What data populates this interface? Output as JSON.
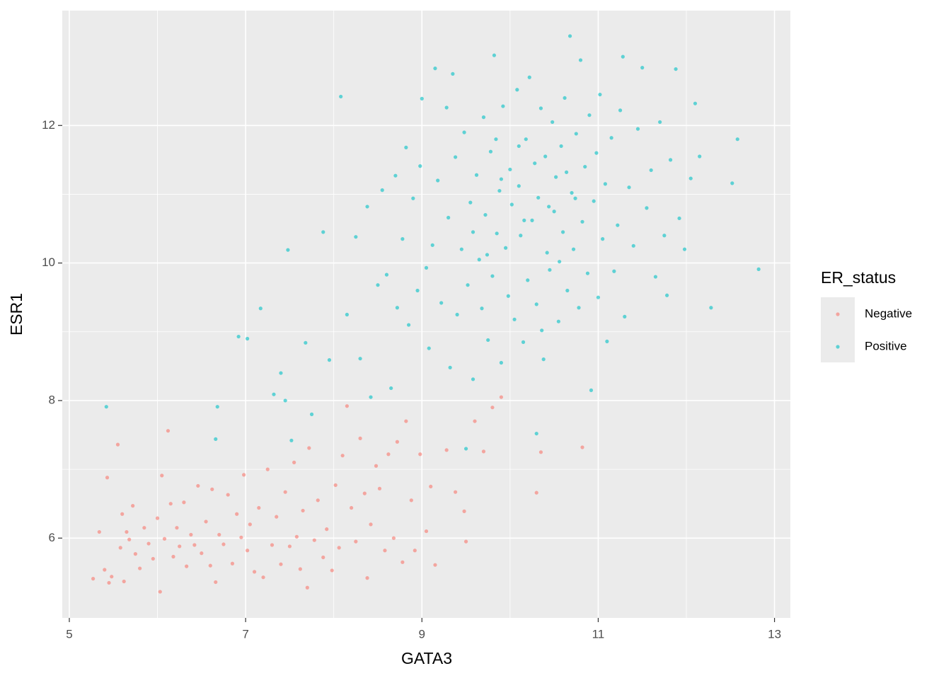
{
  "chart_data": {
    "type": "scatter",
    "x_label": "GATA3",
    "y_label": "ESR1",
    "legend_title": "ER_status",
    "legend_position": "right",
    "grid": true,
    "xlim": [
      4.92,
      13.18
    ],
    "ylim": [
      4.84,
      13.67
    ],
    "xticks": [
      5,
      7,
      9,
      11,
      13
    ],
    "yticks": [
      6,
      8,
      10,
      12
    ],
    "series": [
      {
        "name": "Negative",
        "color": "#F8766D",
        "x": [
          5.27,
          5.34,
          5.4,
          5.43,
          5.45,
          5.48,
          5.55,
          5.58,
          5.6,
          5.62,
          5.65,
          5.68,
          5.72,
          5.75,
          5.8,
          5.85,
          5.9,
          5.95,
          6.0,
          6.03,
          6.05,
          6.08,
          6.12,
          6.15,
          6.18,
          6.22,
          6.25,
          6.3,
          6.33,
          6.38,
          6.42,
          6.46,
          6.5,
          6.55,
          6.6,
          6.62,
          6.66,
          6.7,
          6.75,
          6.8,
          6.85,
          6.9,
          6.95,
          6.98,
          7.02,
          7.05,
          7.1,
          7.15,
          7.2,
          7.25,
          7.3,
          7.35,
          7.4,
          7.45,
          7.5,
          7.55,
          7.58,
          7.62,
          7.65,
          7.7,
          7.72,
          7.78,
          7.82,
          7.88,
          7.92,
          7.98,
          8.02,
          8.06,
          8.1,
          8.15,
          8.2,
          8.25,
          8.3,
          8.35,
          8.38,
          8.42,
          8.48,
          8.52,
          8.58,
          8.62,
          8.68,
          8.72,
          8.78,
          8.82,
          8.88,
          8.92,
          8.98,
          9.05,
          9.1,
          9.15,
          9.28,
          9.38,
          9.48,
          9.5,
          9.6,
          9.7,
          9.8,
          9.9,
          10.3,
          10.35,
          10.82
        ],
        "y": [
          5.41,
          6.09,
          5.54,
          6.88,
          5.35,
          5.44,
          7.36,
          5.86,
          6.35,
          5.37,
          6.09,
          5.98,
          6.47,
          5.77,
          5.56,
          6.15,
          5.92,
          5.7,
          6.29,
          5.22,
          6.91,
          5.99,
          7.56,
          6.5,
          5.73,
          6.15,
          5.88,
          6.52,
          5.59,
          6.05,
          5.9,
          6.76,
          5.78,
          6.24,
          5.6,
          6.71,
          5.36,
          6.05,
          5.91,
          6.63,
          5.63,
          6.35,
          6.01,
          6.92,
          5.82,
          6.2,
          5.51,
          6.44,
          5.43,
          7.0,
          5.9,
          6.31,
          5.62,
          6.67,
          5.88,
          7.1,
          6.02,
          5.55,
          6.4,
          5.28,
          7.31,
          5.97,
          6.55,
          5.72,
          6.13,
          5.53,
          6.77,
          5.86,
          7.2,
          7.92,
          6.44,
          5.95,
          7.45,
          6.65,
          5.42,
          6.2,
          7.05,
          6.72,
          5.82,
          7.22,
          6.0,
          7.4,
          5.65,
          7.7,
          6.55,
          5.82,
          7.22,
          6.1,
          6.75,
          5.61,
          7.28,
          6.67,
          6.39,
          5.95,
          7.7,
          7.26,
          7.9,
          8.05,
          6.66,
          7.25,
          7.32
        ]
      },
      {
        "name": "Positive",
        "color": "#00BFC4",
        "x": [
          5.42,
          6.68,
          6.66,
          6.92,
          7.02,
          7.17,
          7.32,
          7.4,
          7.45,
          7.48,
          7.52,
          7.68,
          7.75,
          7.88,
          7.95,
          8.08,
          8.15,
          8.25,
          8.3,
          8.38,
          8.42,
          8.5,
          8.55,
          8.6,
          8.65,
          8.7,
          8.72,
          8.78,
          8.82,
          8.85,
          8.9,
          8.95,
          8.98,
          9.0,
          9.05,
          9.08,
          9.12,
          9.15,
          9.18,
          9.22,
          9.28,
          9.3,
          9.32,
          9.35,
          9.38,
          9.4,
          9.45,
          9.48,
          9.5,
          9.52,
          9.55,
          9.58,
          9.62,
          9.65,
          9.68,
          9.7,
          9.72,
          9.75,
          9.78,
          9.8,
          9.82,
          9.85,
          9.88,
          9.9,
          9.92,
          9.95,
          9.98,
          10.0,
          10.02,
          10.05,
          10.08,
          10.1,
          10.12,
          10.15,
          10.18,
          10.2,
          10.22,
          10.25,
          10.28,
          10.3,
          10.32,
          10.35,
          10.38,
          10.4,
          10.42,
          10.45,
          10.48,
          10.5,
          10.52,
          10.55,
          10.58,
          10.6,
          10.62,
          10.65,
          10.68,
          10.7,
          10.72,
          10.75,
          10.78,
          10.8,
          10.82,
          10.85,
          10.88,
          10.9,
          10.92,
          10.95,
          10.98,
          11.0,
          11.02,
          11.05,
          11.08,
          11.1,
          11.15,
          11.18,
          11.22,
          11.25,
          11.28,
          11.3,
          11.35,
          11.4,
          11.45,
          11.5,
          11.55,
          11.6,
          11.65,
          11.7,
          11.75,
          11.78,
          11.82,
          11.88,
          11.92,
          11.98,
          12.05,
          12.1,
          12.15,
          12.28,
          12.52,
          12.58,
          12.82,
          10.3,
          10.36,
          9.58,
          9.84,
          10.16,
          10.64,
          9.74,
          10.44,
          10.1,
          10.56,
          9.9,
          10.74
        ],
        "y": [
          7.91,
          7.91,
          7.44,
          8.93,
          8.9,
          9.34,
          8.09,
          8.4,
          8.0,
          10.19,
          7.42,
          8.84,
          7.8,
          10.45,
          8.59,
          12.42,
          9.25,
          10.38,
          8.61,
          10.82,
          8.05,
          9.68,
          11.06,
          9.83,
          8.18,
          11.27,
          9.35,
          10.35,
          11.68,
          9.1,
          10.94,
          9.6,
          11.41,
          12.39,
          9.93,
          8.76,
          10.26,
          12.83,
          11.2,
          9.42,
          12.26,
          10.66,
          8.48,
          12.75,
          11.54,
          9.25,
          10.2,
          11.9,
          7.3,
          9.68,
          10.88,
          8.31,
          11.28,
          10.05,
          9.34,
          12.12,
          10.7,
          8.88,
          11.62,
          9.81,
          13.02,
          10.43,
          11.05,
          8.55,
          12.28,
          10.22,
          9.52,
          11.36,
          10.85,
          9.18,
          12.52,
          11.12,
          10.4,
          8.85,
          11.8,
          9.75,
          12.7,
          10.62,
          11.45,
          9.4,
          10.95,
          12.25,
          8.6,
          11.55,
          10.15,
          9.9,
          12.05,
          10.75,
          11.25,
          9.15,
          11.7,
          10.45,
          12.4,
          9.6,
          13.3,
          11.02,
          10.2,
          11.88,
          9.35,
          12.95,
          10.6,
          11.4,
          9.85,
          12.15,
          8.15,
          10.9,
          11.6,
          9.5,
          12.45,
          10.35,
          11.15,
          8.86,
          11.82,
          9.88,
          10.55,
          12.22,
          13.0,
          9.22,
          11.1,
          10.25,
          11.95,
          12.84,
          10.8,
          11.35,
          9.8,
          12.05,
          10.4,
          9.53,
          11.5,
          12.82,
          10.65,
          10.2,
          11.23,
          12.32,
          11.55,
          9.35,
          11.16,
          11.8,
          9.91,
          7.52,
          9.02,
          10.45,
          11.8,
          10.62,
          11.32,
          10.12,
          10.82,
          11.7,
          10.02,
          11.22,
          10.94
        ]
      }
    ]
  }
}
